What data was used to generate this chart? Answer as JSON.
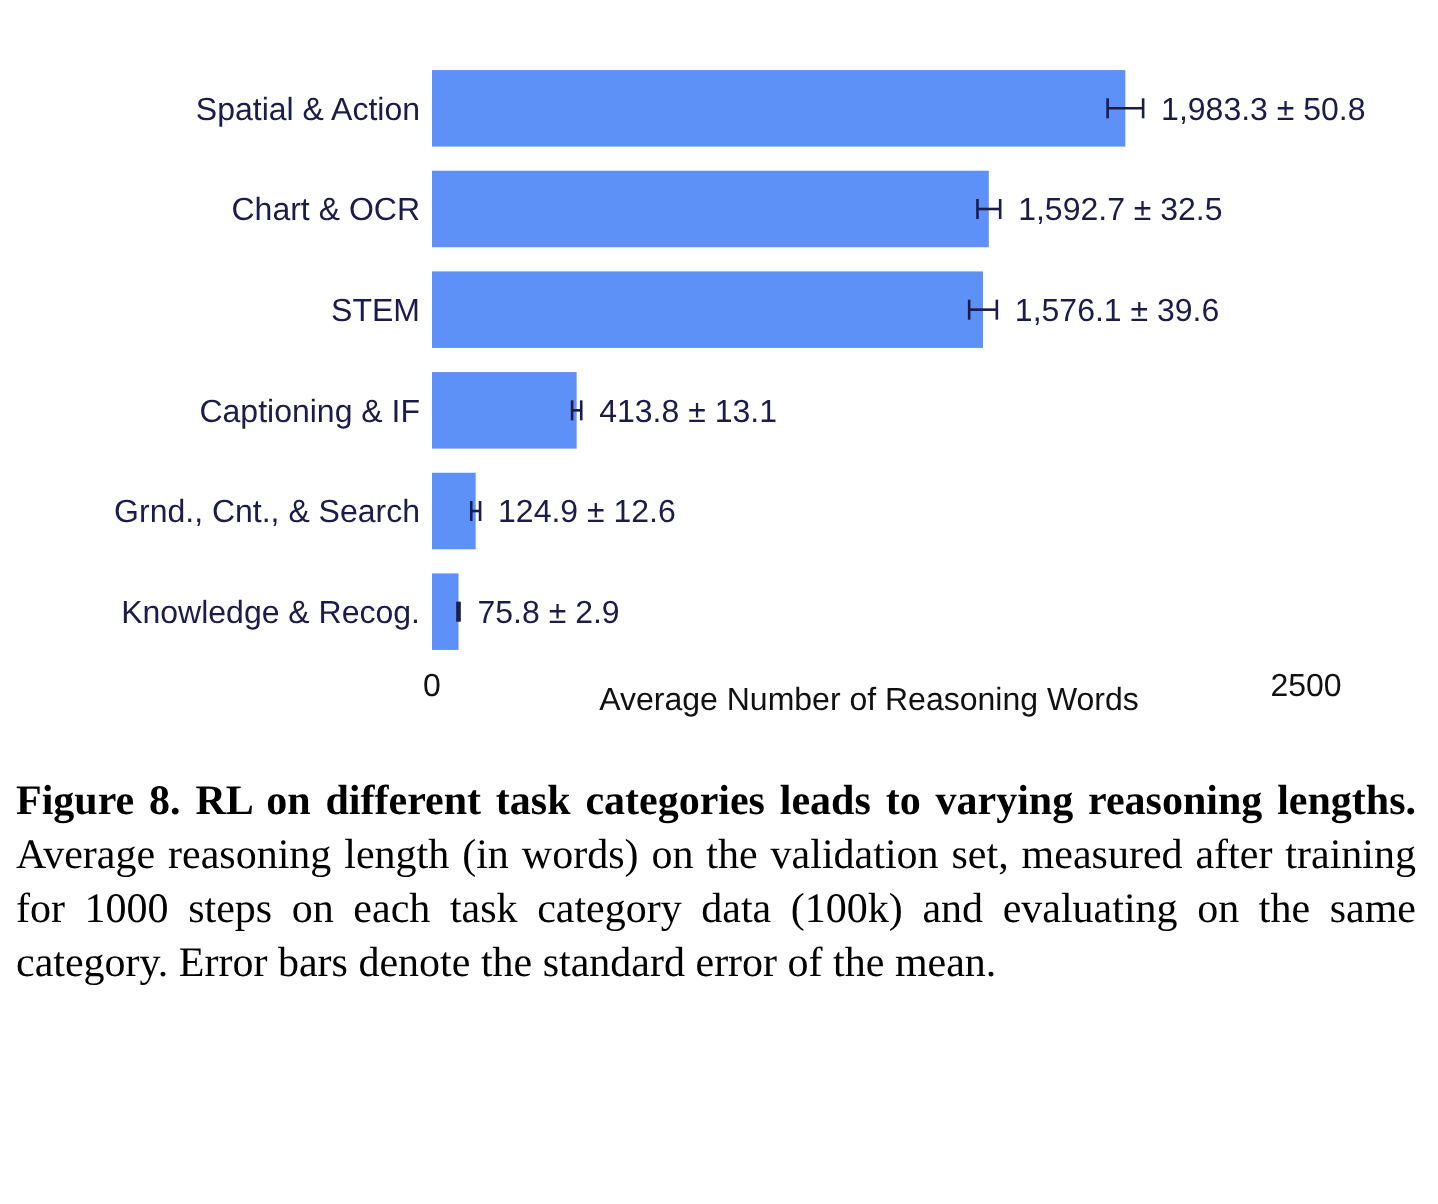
{
  "chart_data": {
    "type": "bar",
    "orientation": "horizontal",
    "title": "Figure 8. RL on different task categories leads to varying reasoning lengths.",
    "xlabel": "Average Number of Reasoning Words",
    "categories": [
      "Spatial & Action",
      "Chart & OCR",
      "STEM",
      "Captioning & IF",
      "Grnd., Cnt., & Search",
      "Knowledge & Recog."
    ],
    "values": [
      1983.3,
      1592.7,
      1576.1,
      413.8,
      124.9,
      75.8
    ],
    "errors": [
      50.8,
      32.5,
      39.6,
      13.1,
      12.6,
      2.9
    ],
    "value_labels": [
      "1,983.3 ± 50.8",
      "1,592.7 ± 32.5",
      "1,576.1 ± 39.6",
      "413.8 ± 13.1",
      "124.9 ± 12.6",
      "75.8 ± 2.9"
    ],
    "color": "#5e91f8",
    "xlim": [
      0,
      2500
    ],
    "xticks": [
      0,
      2500
    ],
    "annotations": [
      "Average reasoning length (in words) on the validation set, measured after training for 1000 steps on each task category data (100k) and evaluating on the same category. Error bars denote the standard error of the mean."
    ]
  }
}
